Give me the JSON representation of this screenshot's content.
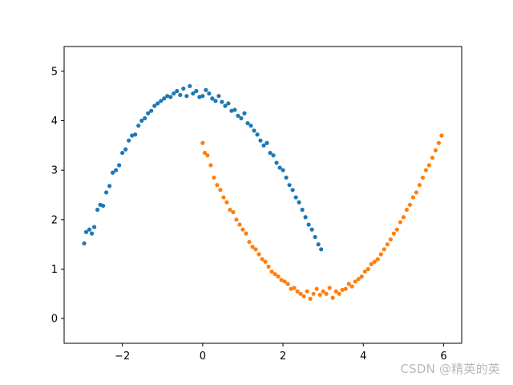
{
  "chart_data": {
    "type": "scatter",
    "title": "",
    "xlabel": "",
    "ylabel": "",
    "xlim": [
      -3.45,
      6.45
    ],
    "ylim": [
      -0.5,
      5.5
    ],
    "xticks": [
      -2,
      0,
      2,
      4,
      6
    ],
    "xtick_labels": [
      "−2",
      "0",
      "2",
      "4",
      "6"
    ],
    "yticks": [
      0,
      1,
      2,
      3,
      4,
      5
    ],
    "ytick_labels": [
      "0",
      "1",
      "2",
      "3",
      "4",
      "5"
    ],
    "grid": false,
    "legend": "none",
    "series": [
      {
        "color": "#1f77b4",
        "x": [
          -2.95,
          -2.9,
          -2.82,
          -2.76,
          -2.7,
          -2.62,
          -2.55,
          -2.48,
          -2.4,
          -2.32,
          -2.24,
          -2.16,
          -2.08,
          -2.0,
          -1.92,
          -1.84,
          -1.76,
          -1.68,
          -1.6,
          -1.52,
          -1.44,
          -1.36,
          -1.28,
          -1.2,
          -1.12,
          -1.04,
          -0.96,
          -0.88,
          -0.8,
          -0.72,
          -0.64,
          -0.56,
          -0.48,
          -0.4,
          -0.32,
          -0.24,
          -0.16,
          -0.08,
          0.0,
          0.08,
          0.16,
          0.24,
          0.32,
          0.4,
          0.48,
          0.56,
          0.64,
          0.72,
          0.8,
          0.88,
          0.96,
          1.04,
          1.12,
          1.2,
          1.28,
          1.36,
          1.44,
          1.52,
          1.6,
          1.68,
          1.76,
          1.84,
          1.92,
          2.0,
          2.08,
          2.16,
          2.24,
          2.32,
          2.4,
          2.48,
          2.56,
          2.64,
          2.72,
          2.8,
          2.88,
          2.95
        ],
        "y": [
          1.52,
          1.75,
          1.8,
          1.72,
          1.85,
          2.2,
          2.3,
          2.28,
          2.55,
          2.68,
          2.95,
          3.0,
          3.1,
          3.35,
          3.42,
          3.6,
          3.7,
          3.72,
          3.9,
          4.0,
          4.05,
          4.15,
          4.2,
          4.3,
          4.35,
          4.4,
          4.45,
          4.5,
          4.48,
          4.55,
          4.6,
          4.52,
          4.65,
          4.5,
          4.7,
          4.55,
          4.6,
          4.48,
          4.5,
          4.62,
          4.55,
          4.45,
          4.4,
          4.5,
          4.38,
          4.3,
          4.35,
          4.2,
          4.22,
          4.1,
          4.05,
          4.15,
          3.95,
          3.9,
          3.8,
          3.72,
          3.6,
          3.5,
          3.55,
          3.35,
          3.3,
          3.15,
          3.05,
          3.0,
          2.85,
          2.7,
          2.6,
          2.45,
          2.35,
          2.2,
          2.05,
          1.9,
          1.8,
          1.65,
          1.5,
          1.4
        ]
      },
      {
        "color": "#ff7f0e",
        "x": [
          0.0,
          0.05,
          0.12,
          0.2,
          0.28,
          0.36,
          0.44,
          0.52,
          0.6,
          0.68,
          0.76,
          0.84,
          0.92,
          1.0,
          1.08,
          1.16,
          1.24,
          1.32,
          1.4,
          1.48,
          1.56,
          1.64,
          1.72,
          1.8,
          1.88,
          1.96,
          2.04,
          2.12,
          2.2,
          2.28,
          2.36,
          2.44,
          2.52,
          2.6,
          2.68,
          2.76,
          2.84,
          2.92,
          3.0,
          3.08,
          3.16,
          3.24,
          3.32,
          3.4,
          3.48,
          3.56,
          3.64,
          3.72,
          3.8,
          3.88,
          3.96,
          4.04,
          4.12,
          4.2,
          4.28,
          4.36,
          4.44,
          4.52,
          4.6,
          4.68,
          4.76,
          4.84,
          4.92,
          5.0,
          5.08,
          5.16,
          5.24,
          5.32,
          5.4,
          5.48,
          5.56,
          5.64,
          5.72,
          5.8,
          5.88,
          5.95
        ],
        "y": [
          3.55,
          3.35,
          3.3,
          3.1,
          2.85,
          2.7,
          2.6,
          2.45,
          2.35,
          2.2,
          2.15,
          2.0,
          1.9,
          1.8,
          1.72,
          1.55,
          1.45,
          1.4,
          1.3,
          1.2,
          1.15,
          1.05,
          0.95,
          0.9,
          0.85,
          0.78,
          0.75,
          0.7,
          0.6,
          0.62,
          0.55,
          0.5,
          0.45,
          0.55,
          0.4,
          0.5,
          0.6,
          0.48,
          0.55,
          0.5,
          0.62,
          0.42,
          0.55,
          0.5,
          0.58,
          0.6,
          0.7,
          0.65,
          0.75,
          0.8,
          0.85,
          0.95,
          1.0,
          1.1,
          1.15,
          1.2,
          1.3,
          1.4,
          1.5,
          1.6,
          1.72,
          1.8,
          1.95,
          2.05,
          2.2,
          2.3,
          2.45,
          2.55,
          2.7,
          2.85,
          3.0,
          3.1,
          3.25,
          3.4,
          3.55,
          3.7
        ]
      }
    ]
  },
  "watermark": "CSDN @精英的英"
}
